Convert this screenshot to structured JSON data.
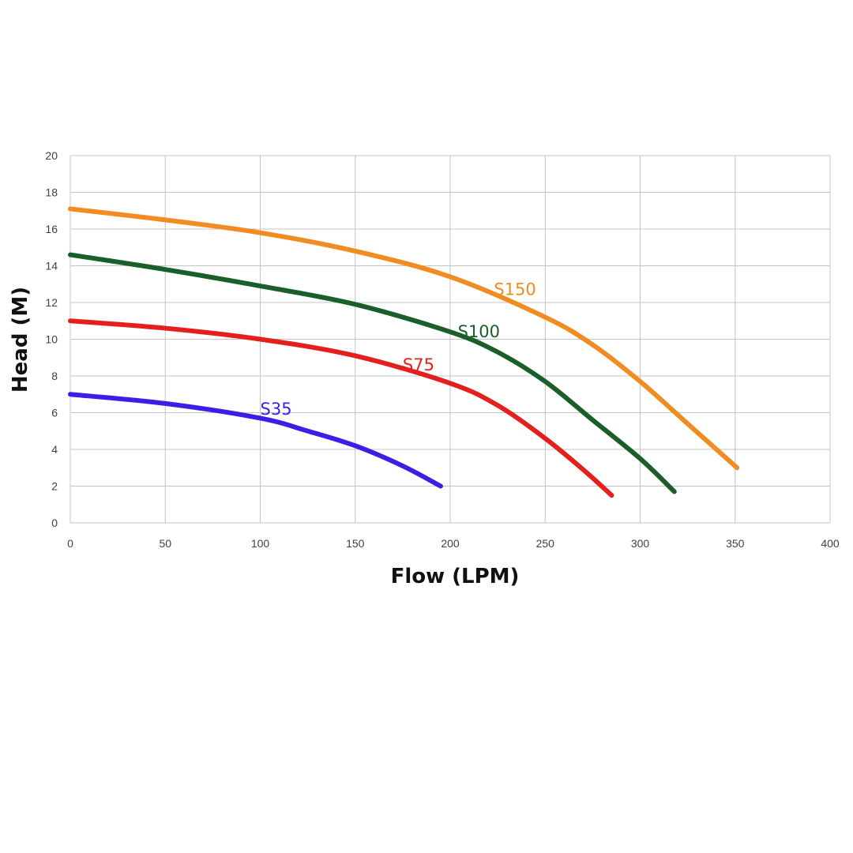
{
  "chart_data": {
    "type": "line",
    "title": "",
    "xlabel": "Flow (LPM)",
    "ylabel": "Head (M)",
    "xlim": [
      0,
      400
    ],
    "ylim": [
      0,
      20
    ],
    "xticks": [
      0,
      50,
      100,
      150,
      200,
      250,
      300,
      350,
      400
    ],
    "yticks": [
      0,
      2,
      4,
      6,
      8,
      10,
      12,
      14,
      16,
      18,
      20
    ],
    "grid": true,
    "legend": "none",
    "series": [
      {
        "name": "S150",
        "color": "#f08c22",
        "label_at": [
          223,
          12.4
        ],
        "points": [
          [
            0,
            17.1
          ],
          [
            50,
            16.5
          ],
          [
            100,
            15.8
          ],
          [
            150,
            14.8
          ],
          [
            200,
            13.4
          ],
          [
            250,
            11.2
          ],
          [
            275,
            9.7
          ],
          [
            300,
            7.7
          ],
          [
            325,
            5.4
          ],
          [
            351,
            3.0
          ]
        ]
      },
      {
        "name": "S100",
        "color": "#1a5e2a",
        "label_at": [
          204,
          10.1
        ],
        "points": [
          [
            0,
            14.6
          ],
          [
            50,
            13.8
          ],
          [
            100,
            12.9
          ],
          [
            150,
            11.9
          ],
          [
            200,
            10.4
          ],
          [
            225,
            9.3
          ],
          [
            250,
            7.7
          ],
          [
            275,
            5.6
          ],
          [
            300,
            3.5
          ],
          [
            318,
            1.7
          ]
        ]
      },
      {
        "name": "S75",
        "color": "#e3201e",
        "label_at": [
          175,
          8.3
        ],
        "points": [
          [
            0,
            11.0
          ],
          [
            50,
            10.6
          ],
          [
            100,
            10.0
          ],
          [
            150,
            9.1
          ],
          [
            200,
            7.6
          ],
          [
            225,
            6.4
          ],
          [
            250,
            4.6
          ],
          [
            270,
            2.9
          ],
          [
            285,
            1.5
          ]
        ]
      },
      {
        "name": "S35",
        "color": "#3a1fe6",
        "label_at": [
          100,
          5.9
        ],
        "points": [
          [
            0,
            7.0
          ],
          [
            50,
            6.5
          ],
          [
            100,
            5.7
          ],
          [
            125,
            5.0
          ],
          [
            150,
            4.2
          ],
          [
            175,
            3.1
          ],
          [
            195,
            2.0
          ]
        ]
      }
    ]
  }
}
